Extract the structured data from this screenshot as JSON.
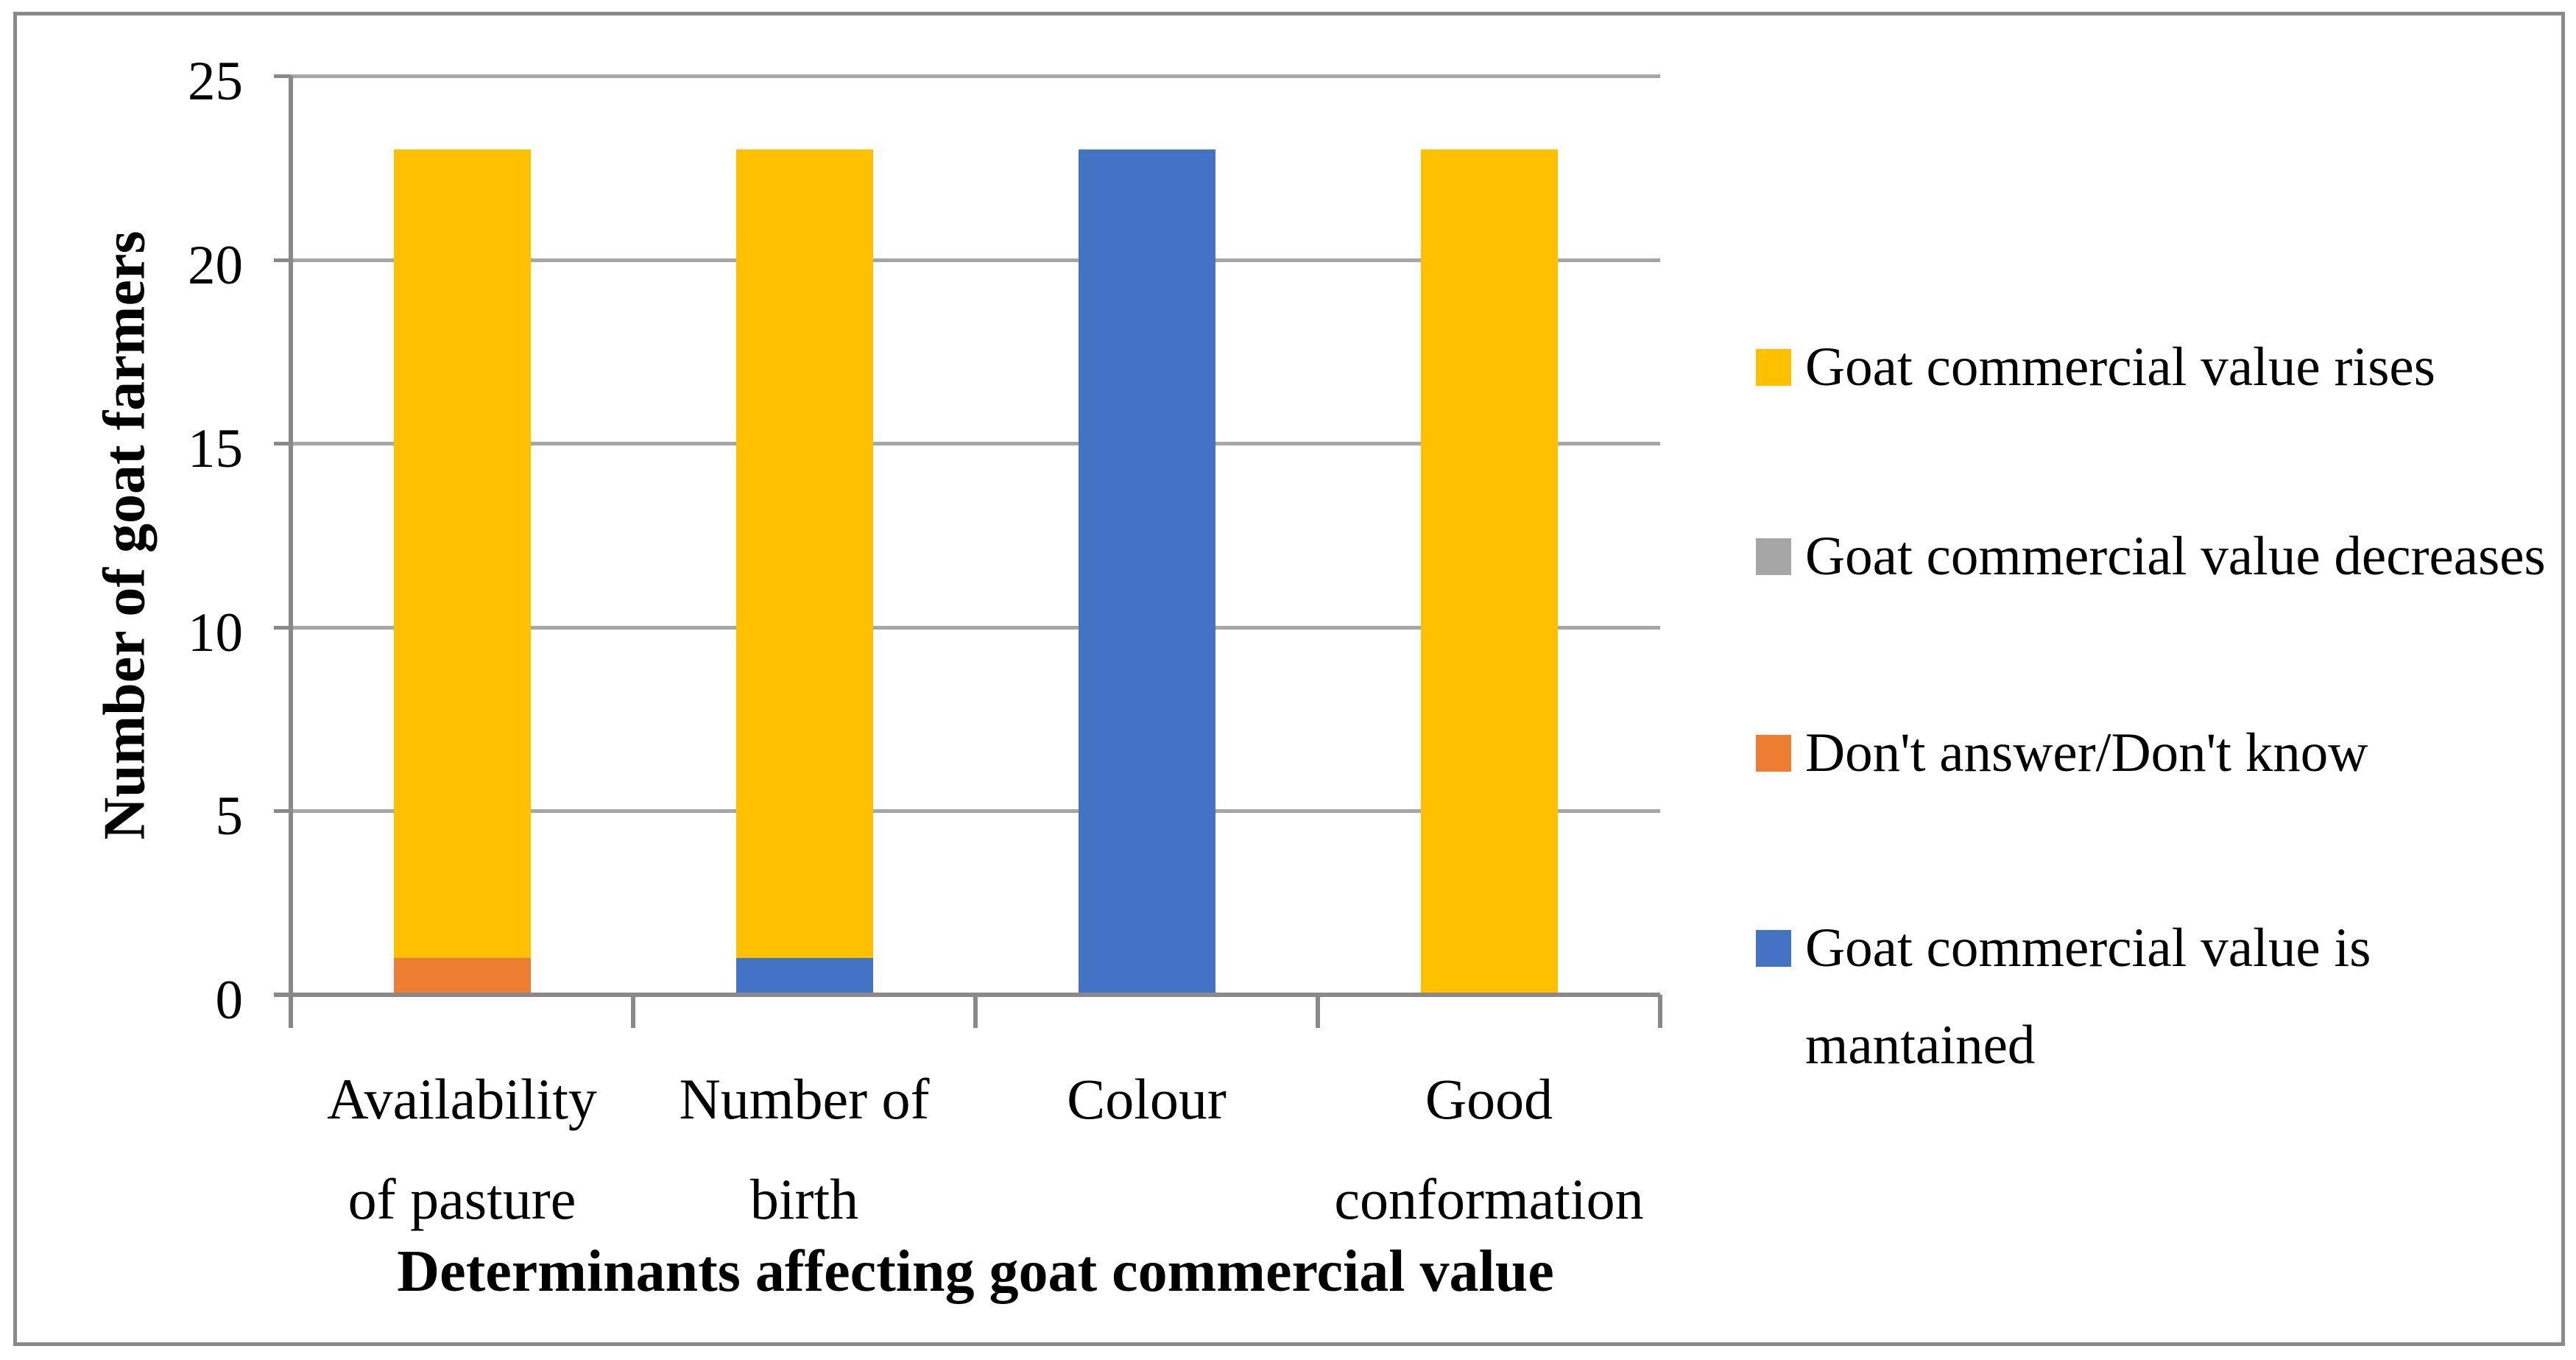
{
  "figure": {
    "background_color": "#FFFFFF",
    "border_color": "#898989"
  },
  "chart_data": {
    "type": "bar",
    "stacked": true,
    "title": "",
    "xlabel": "Determinants affecting goat commercial value",
    "ylabel": "Number of goat farmers",
    "categories": [
      "Availability of pasture",
      "Number of birth",
      "Colour",
      "Good conformation"
    ],
    "category_label_lines": [
      [
        "Availability",
        "of pasture"
      ],
      [
        "Number of",
        "birth"
      ],
      [
        "Colour"
      ],
      [
        "Good",
        "conformation"
      ]
    ],
    "y_ticks": [
      0,
      5,
      10,
      15,
      20,
      25
    ],
    "ylim": [
      0,
      25
    ],
    "grid": true,
    "bar_totals": [
      23,
      23,
      23,
      23
    ],
    "series_bottom_to_top": [
      {
        "name": "Goat commercial value decreases",
        "color": "#A6A6A6",
        "values": [
          0,
          0,
          0,
          0
        ]
      },
      {
        "name": "Don't answer/Don't know",
        "color": "#ED7D31",
        "values": [
          1,
          0,
          0,
          0
        ]
      },
      {
        "name": "Goat commercial value is mantained",
        "color": "#4472C4",
        "values": [
          0,
          1,
          23,
          0
        ]
      },
      {
        "name": "Goat commercial value rises",
        "color": "#FFC000",
        "values": [
          22,
          22,
          0,
          23
        ]
      }
    ],
    "legend_position": "right",
    "legend": [
      {
        "label": "Goat commercial value rises",
        "color": "#FFC000"
      },
      {
        "label": "Goat commercial value decreases",
        "color": "#A6A6A6"
      },
      {
        "label": "Don't answer/Don't know",
        "color": "#ED7D31"
      },
      {
        "label": "Goat commercial value is mantained",
        "color": "#4472C4"
      }
    ],
    "style": {
      "axis_color": "#898989",
      "gridline_color": "#A6A6A6",
      "text_color": "#000000"
    }
  }
}
